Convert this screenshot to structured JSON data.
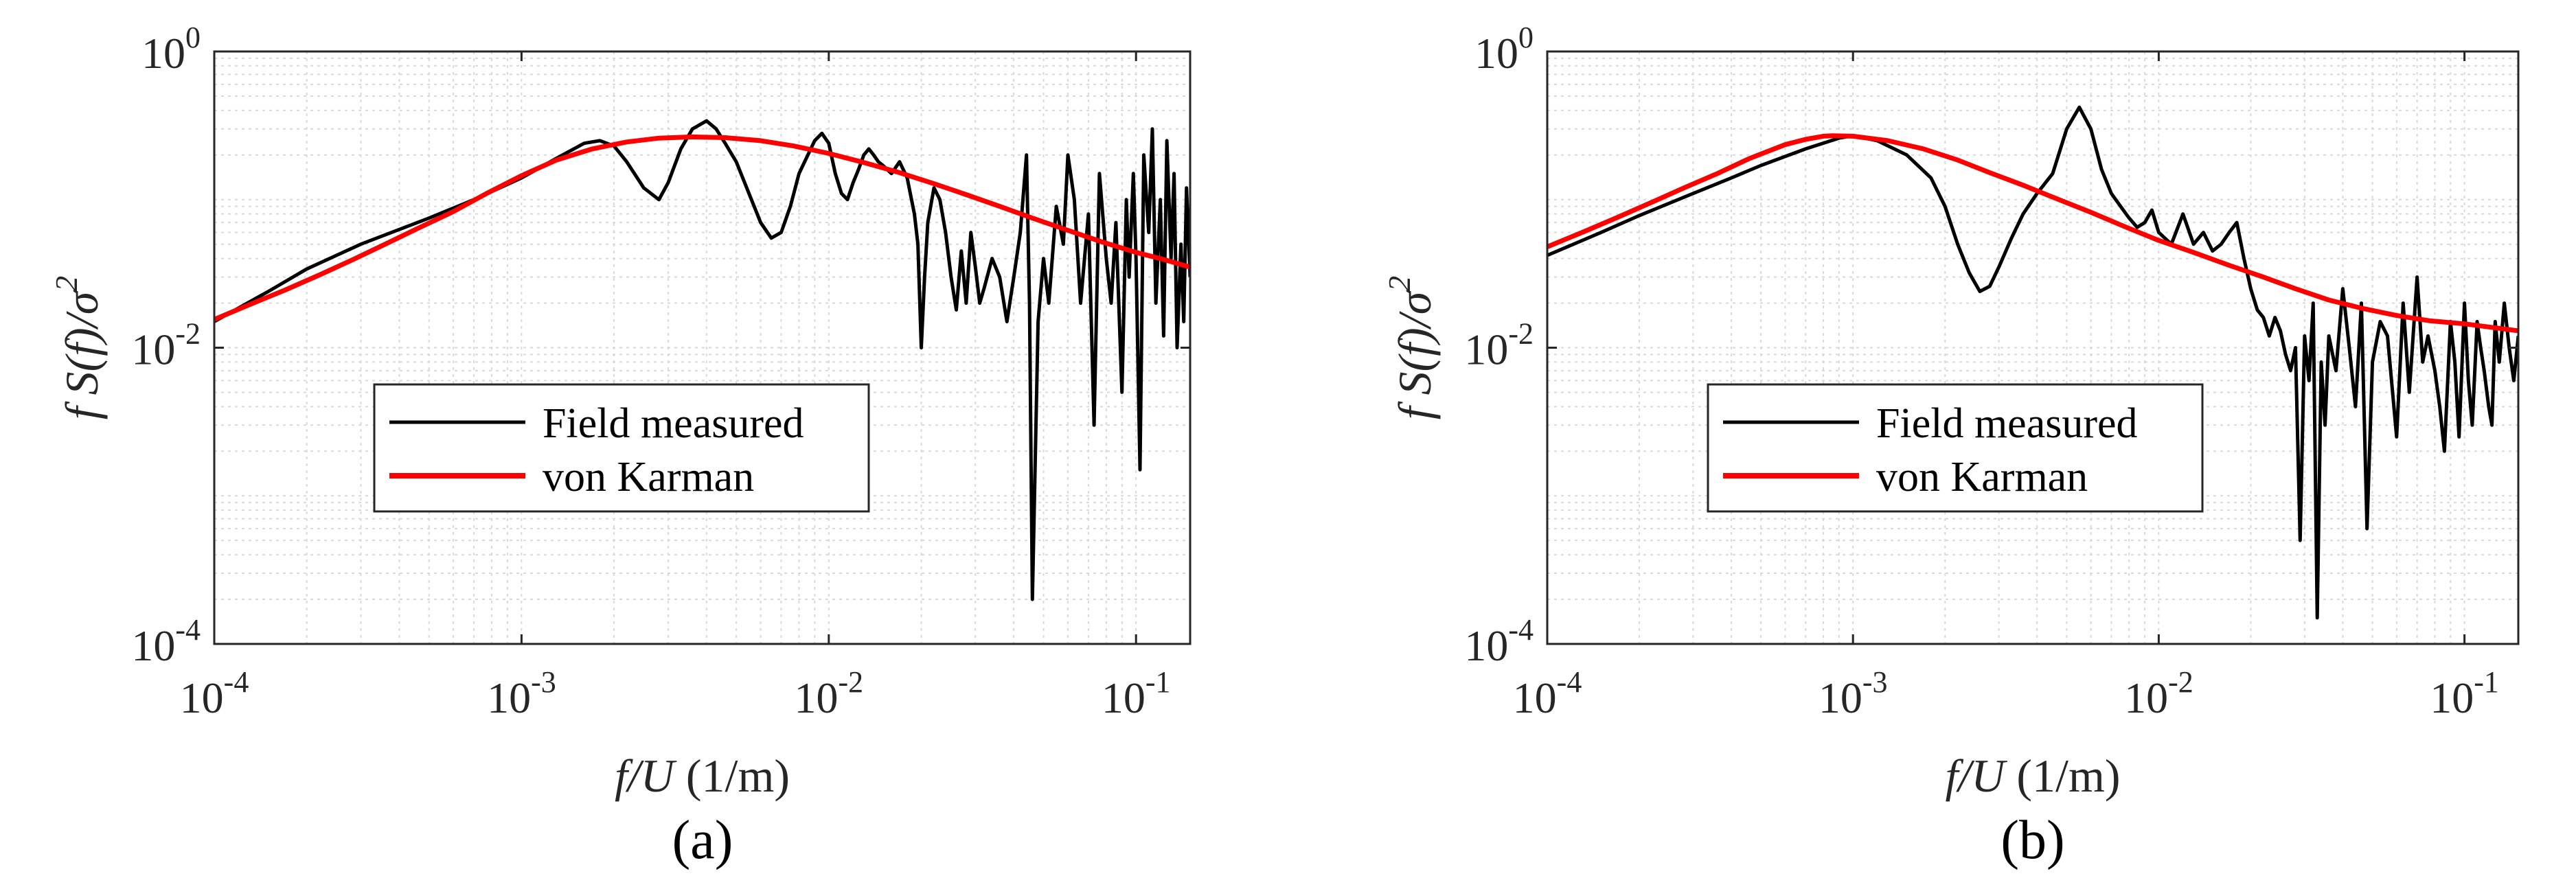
{
  "figure": {
    "panels": [
      "(a)",
      "(b)"
    ]
  },
  "chart_data": [
    {
      "type": "line",
      "panel_label": "(a)",
      "xlabel_italic": "f/U",
      "xlabel_unit": " (1/m)",
      "ylabel_parts": [
        "f S(f)/σ",
        "2"
      ],
      "x_scale": "log",
      "y_scale": "log",
      "xlim": [
        0.0001,
        0.15
      ],
      "ylim": [
        0.0001,
        1
      ],
      "x_ticks": [
        {
          "base": "10",
          "exp": "-4",
          "value": 0.0001
        },
        {
          "base": "10",
          "exp": "-3",
          "value": 0.001
        },
        {
          "base": "10",
          "exp": "-2",
          "value": 0.01
        },
        {
          "base": "10",
          "exp": "-1",
          "value": 0.1
        }
      ],
      "y_ticks": [
        {
          "base": "10",
          "exp": "-4",
          "value": 0.0001
        },
        {
          "base": "10",
          "exp": "-2",
          "value": 0.01
        },
        {
          "base": "10",
          "exp": "0",
          "value": 1
        }
      ],
      "grid": true,
      "legend_placement": "lower-left",
      "series": [
        {
          "name": "Field measured",
          "color": "#000000",
          "x": [
            0.0001,
            0.00015,
            0.0002,
            0.0003,
            0.0005,
            0.0007,
            0.001,
            0.0013,
            0.0016,
            0.0018,
            0.002,
            0.0022,
            0.0025,
            0.0028,
            0.003,
            0.0033,
            0.0036,
            0.004,
            0.0043,
            0.0046,
            0.005,
            0.0055,
            0.006,
            0.0065,
            0.007,
            0.0075,
            0.008,
            0.009,
            0.0095,
            0.01,
            0.0105,
            0.011,
            0.0115,
            0.012,
            0.0125,
            0.013,
            0.0135,
            0.014,
            0.0145,
            0.015,
            0.016,
            0.017,
            0.018,
            0.019,
            0.0195,
            0.02,
            0.0205,
            0.021,
            0.022,
            0.023,
            0.024,
            0.025,
            0.026,
            0.027,
            0.028,
            0.029,
            0.03,
            0.031,
            0.032,
            0.034,
            0.036,
            0.038,
            0.04,
            0.042,
            0.044,
            0.045,
            0.046,
            0.048,
            0.05,
            0.052,
            0.055,
            0.058,
            0.06,
            0.063,
            0.066,
            0.07,
            0.073,
            0.076,
            0.08,
            0.083,
            0.086,
            0.09,
            0.093,
            0.095,
            0.098,
            0.1,
            0.103,
            0.106,
            0.11,
            0.113,
            0.116,
            0.12,
            0.123,
            0.126,
            0.13,
            0.133,
            0.136,
            0.14,
            0.143,
            0.146,
            0.15
          ],
          "y": [
            0.015,
            0.024,
            0.034,
            0.05,
            0.075,
            0.1,
            0.14,
            0.19,
            0.24,
            0.25,
            0.23,
            0.18,
            0.12,
            0.1,
            0.13,
            0.22,
            0.3,
            0.34,
            0.3,
            0.24,
            0.18,
            0.11,
            0.07,
            0.055,
            0.06,
            0.09,
            0.15,
            0.25,
            0.28,
            0.24,
            0.15,
            0.11,
            0.1,
            0.13,
            0.16,
            0.2,
            0.22,
            0.2,
            0.18,
            0.17,
            0.15,
            0.18,
            0.14,
            0.08,
            0.05,
            0.01,
            0.03,
            0.07,
            0.12,
            0.1,
            0.06,
            0.03,
            0.018,
            0.045,
            0.02,
            0.06,
            0.035,
            0.02,
            0.025,
            0.04,
            0.03,
            0.015,
            0.03,
            0.06,
            0.2,
            0.02,
            0.0002,
            0.015,
            0.04,
            0.02,
            0.09,
            0.05,
            0.2,
            0.1,
            0.02,
            0.08,
            0.003,
            0.15,
            0.04,
            0.02,
            0.07,
            0.005,
            0.1,
            0.03,
            0.15,
            0.04,
            0.0015,
            0.2,
            0.06,
            0.3,
            0.02,
            0.1,
            0.012,
            0.25,
            0.04,
            0.15,
            0.01,
            0.05,
            0.015,
            0.12,
            0.03
          ]
        },
        {
          "name": "von Karman",
          "color": "#ff0000",
          "x": [
            0.0001,
            0.00013,
            0.00017,
            0.00022,
            0.00028,
            0.00036,
            0.00046,
            0.0006,
            0.00077,
            0.001,
            0.0013,
            0.0017,
            0.0022,
            0.0028,
            0.0036,
            0.0046,
            0.006,
            0.0077,
            0.01,
            0.013,
            0.017,
            0.022,
            0.028,
            0.036,
            0.046,
            0.06,
            0.077,
            0.1,
            0.12,
            0.15
          ],
          "y": [
            0.0155,
            0.0195,
            0.0245,
            0.031,
            0.039,
            0.05,
            0.064,
            0.083,
            0.11,
            0.145,
            0.185,
            0.22,
            0.245,
            0.26,
            0.265,
            0.262,
            0.25,
            0.23,
            0.205,
            0.178,
            0.152,
            0.128,
            0.108,
            0.09,
            0.075,
            0.062,
            0.052,
            0.044,
            0.04,
            0.035
          ]
        }
      ]
    },
    {
      "type": "line",
      "panel_label": "(b)",
      "xlabel_italic": "f/U",
      "xlabel_unit": " (1/m)",
      "ylabel_parts": [
        "f S(f)/σ",
        "2"
      ],
      "x_scale": "log",
      "y_scale": "log",
      "xlim": [
        0.0001,
        0.15
      ],
      "ylim": [
        0.0001,
        1
      ],
      "x_ticks": [
        {
          "base": "10",
          "exp": "-4",
          "value": 0.0001
        },
        {
          "base": "10",
          "exp": "-3",
          "value": 0.001
        },
        {
          "base": "10",
          "exp": "-2",
          "value": 0.01
        },
        {
          "base": "10",
          "exp": "-1",
          "value": 0.1
        }
      ],
      "y_ticks": [
        {
          "base": "10",
          "exp": "-4",
          "value": 0.0001
        },
        {
          "base": "10",
          "exp": "-2",
          "value": 0.01
        },
        {
          "base": "10",
          "exp": "0",
          "value": 1
        }
      ],
      "grid": true,
      "legend_placement": "lower-left",
      "series": [
        {
          "name": "Field measured",
          "color": "#000000",
          "x": [
            0.0001,
            0.00015,
            0.0002,
            0.0003,
            0.0004,
            0.0005,
            0.0007,
            0.0009,
            0.001,
            0.0012,
            0.0015,
            0.0018,
            0.002,
            0.0022,
            0.0024,
            0.0026,
            0.0028,
            0.003,
            0.0033,
            0.0036,
            0.004,
            0.0045,
            0.005,
            0.0055,
            0.006,
            0.0065,
            0.007,
            0.0075,
            0.008,
            0.0085,
            0.009,
            0.0095,
            0.01,
            0.011,
            0.012,
            0.013,
            0.014,
            0.015,
            0.016,
            0.017,
            0.018,
            0.019,
            0.02,
            0.021,
            0.022,
            0.023,
            0.024,
            0.025,
            0.026,
            0.027,
            0.028,
            0.029,
            0.03,
            0.031,
            0.032,
            0.033,
            0.034,
            0.035,
            0.036,
            0.038,
            0.04,
            0.042,
            0.044,
            0.046,
            0.048,
            0.05,
            0.053,
            0.056,
            0.06,
            0.063,
            0.066,
            0.07,
            0.073,
            0.076,
            0.08,
            0.083,
            0.086,
            0.09,
            0.093,
            0.096,
            0.1,
            0.103,
            0.106,
            0.11,
            0.113,
            0.116,
            0.12,
            0.123,
            0.126,
            0.13,
            0.135,
            0.14,
            0.145,
            0.15
          ],
          "y": [
            0.042,
            0.06,
            0.078,
            0.11,
            0.14,
            0.17,
            0.22,
            0.26,
            0.27,
            0.25,
            0.2,
            0.14,
            0.09,
            0.05,
            0.032,
            0.024,
            0.026,
            0.035,
            0.055,
            0.08,
            0.11,
            0.15,
            0.3,
            0.42,
            0.3,
            0.16,
            0.11,
            0.09,
            0.075,
            0.065,
            0.07,
            0.085,
            0.06,
            0.05,
            0.08,
            0.05,
            0.06,
            0.045,
            0.05,
            0.06,
            0.07,
            0.04,
            0.025,
            0.018,
            0.016,
            0.012,
            0.016,
            0.013,
            0.009,
            0.007,
            0.01,
            0.0005,
            0.012,
            0.006,
            0.02,
            0.00015,
            0.008,
            0.003,
            0.012,
            0.007,
            0.025,
            0.01,
            0.004,
            0.02,
            0.0006,
            0.008,
            0.015,
            0.012,
            0.0025,
            0.02,
            0.005,
            0.03,
            0.008,
            0.012,
            0.007,
            0.004,
            0.002,
            0.015,
            0.008,
            0.0025,
            0.02,
            0.006,
            0.003,
            0.015,
            0.01,
            0.007,
            0.004,
            0.003,
            0.015,
            0.008,
            0.02,
            0.01,
            0.006,
            0.012
          ]
        },
        {
          "name": "von Karman",
          "color": "#ff0000",
          "x": [
            0.0001,
            0.00013,
            0.00017,
            0.00022,
            0.00028,
            0.00036,
            0.00046,
            0.0006,
            0.0007,
            0.0008,
            0.00086,
            0.001,
            0.0013,
            0.0017,
            0.0022,
            0.0028,
            0.0036,
            0.0046,
            0.006,
            0.0077,
            0.01,
            0.013,
            0.017,
            0.022,
            0.028,
            0.036,
            0.046,
            0.06,
            0.077,
            0.1,
            0.12,
            0.15
          ],
          "y": [
            0.048,
            0.06,
            0.076,
            0.096,
            0.12,
            0.15,
            0.19,
            0.235,
            0.255,
            0.268,
            0.27,
            0.268,
            0.25,
            0.22,
            0.185,
            0.152,
            0.125,
            0.102,
            0.082,
            0.066,
            0.053,
            0.044,
            0.036,
            0.03,
            0.025,
            0.021,
            0.0185,
            0.0165,
            0.0152,
            0.0145,
            0.0138,
            0.013
          ]
        }
      ]
    }
  ]
}
